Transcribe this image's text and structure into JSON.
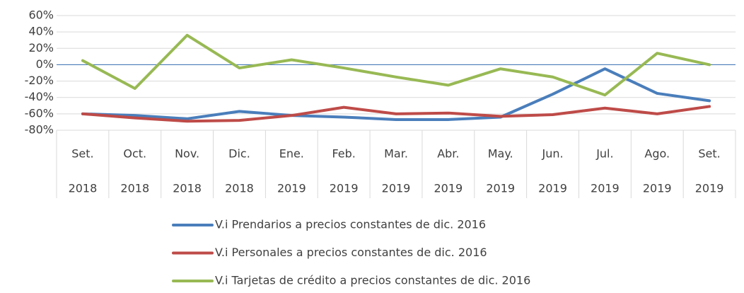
{
  "chart_data": {
    "type": "line",
    "categories": [
      "Set.",
      "Oct.",
      "Nov.",
      "Dic.",
      "Ene.",
      "Feb.",
      "Mar.",
      "Abr.",
      "May.",
      "Jun.",
      "Jul.",
      "Ago.",
      "Set."
    ],
    "category_years": [
      "2018",
      "2018",
      "2018",
      "2018",
      "2019",
      "2019",
      "2019",
      "2019",
      "2019",
      "2019",
      "2019",
      "2019",
      "2019"
    ],
    "series": [
      {
        "name": "V.i Prendarios a precios constantes de dic. 2016",
        "color": "#4a7ebb",
        "values": [
          -60,
          -62,
          -66,
          -57,
          -62,
          -64,
          -67,
          -67,
          -64,
          -36,
          -5,
          -35,
          -44
        ]
      },
      {
        "name": "V.i Personales a precios constantes de dic. 2016",
        "color": "#be4b48",
        "values": [
          -60,
          -65,
          -69,
          -68,
          -62,
          -52,
          -60,
          -59,
          -63,
          -61,
          -53,
          -60,
          -51
        ]
      },
      {
        "name": "V.i Tarjetas de crédito a precios constantes de dic. 2016",
        "color": "#98b954",
        "values": [
          5,
          -29,
          36,
          -4,
          6,
          -4,
          -15,
          -25,
          -5,
          -15,
          -37,
          14,
          0
        ]
      }
    ],
    "ylim": [
      -80,
      60
    ],
    "yticks": [
      {
        "value": -80,
        "label": "-80%"
      },
      {
        "value": -60,
        "label": "-60%"
      },
      {
        "value": -40,
        "label": "-40%"
      },
      {
        "value": -20,
        "label": "-20%"
      },
      {
        "value": 0,
        "label": "0%"
      },
      {
        "value": 20,
        "label": "20%"
      },
      {
        "value": 40,
        "label": "40%"
      },
      {
        "value": 60,
        "label": "60%"
      }
    ],
    "grid": true,
    "legend": "bottom"
  }
}
